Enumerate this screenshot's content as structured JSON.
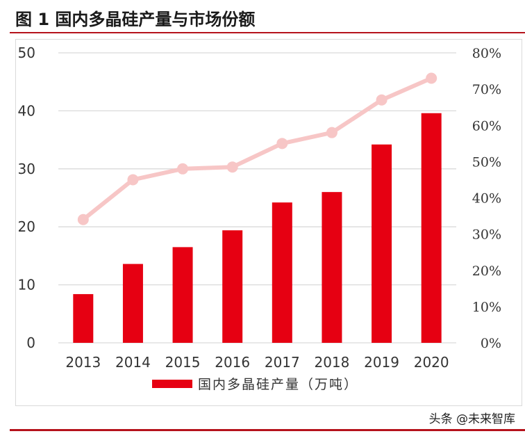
{
  "header": {
    "title": "图 1 国内多晶硅产量与市场份额"
  },
  "watermark": "头条 @未来智库",
  "colors": {
    "bar": "#e60012",
    "line": "#f7c6c6",
    "accent": "#b5121b",
    "grid": "#d9d9d9"
  },
  "chart_data": {
    "type": "bar",
    "categories": [
      "2013",
      "2014",
      "2015",
      "2016",
      "2017",
      "2018",
      "2019",
      "2020"
    ],
    "series": [
      {
        "name": "国内多晶硅产量（万吨）",
        "type": "bar",
        "axis": "left",
        "values": [
          8.4,
          13.6,
          16.5,
          19.4,
          24.2,
          26.0,
          34.2,
          39.6
        ]
      },
      {
        "name": "",
        "type": "line",
        "axis": "right",
        "values": [
          34,
          45,
          48,
          48.5,
          55,
          58,
          67,
          73
        ]
      }
    ],
    "y_left": {
      "min": 0,
      "max": 50,
      "ticks": [
        "0",
        "10",
        "20",
        "30",
        "40",
        "50"
      ]
    },
    "y_right": {
      "min": 0,
      "max": 80,
      "ticks": [
        "0%",
        "10%",
        "20%",
        "30%",
        "40%",
        "50%",
        "60%",
        "70%",
        "80%"
      ]
    },
    "grid": true,
    "legend_position": "bottom"
  }
}
